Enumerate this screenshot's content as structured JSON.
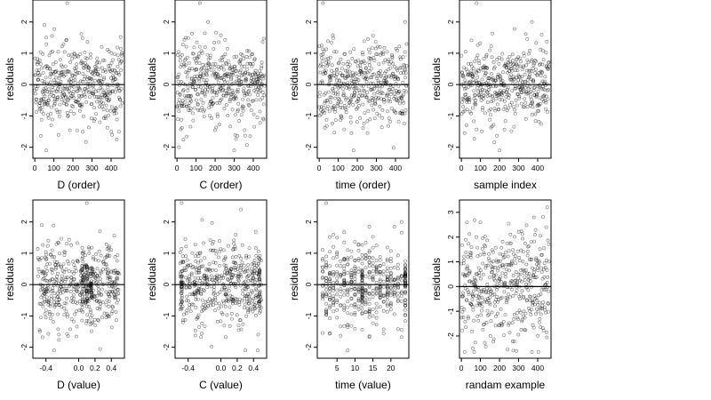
{
  "chart_data": [
    {
      "type": "scatter",
      "xlabel": "D (order)",
      "ylabel": "residuals",
      "xlim": [
        -10,
        470
      ],
      "ylim": [
        -2.35,
        2.7
      ],
      "xticks": [
        0,
        100,
        200,
        300,
        400
      ],
      "xtick_labels": [
        "0",
        "100",
        "200",
        "300",
        "400"
      ],
      "yticks": [
        -2,
        -1,
        0,
        1,
        2
      ],
      "ytick_labels": [
        "-2",
        "-1",
        "0",
        "1",
        "2"
      ],
      "hline": 0,
      "seed": 11,
      "n": 460,
      "xmode": "order",
      "outliers": [
        [
          60,
          -2.1
        ],
        [
          170,
          2.6
        ],
        [
          50,
          1.9
        ]
      ]
    },
    {
      "type": "scatter",
      "xlabel": "C (order)",
      "ylabel": "residuals",
      "xlim": [
        -10,
        470
      ],
      "ylim": [
        -2.35,
        2.7
      ],
      "xticks": [
        0,
        100,
        200,
        300,
        400
      ],
      "xtick_labels": [
        "0",
        "100",
        "200",
        "300",
        "400"
      ],
      "yticks": [
        -2,
        -1,
        0,
        1,
        2
      ],
      "ytick_labels": [
        "-2",
        "-1",
        "0",
        "1",
        "2"
      ],
      "hline": 0,
      "seed": 23,
      "n": 460,
      "xmode": "order",
      "outliers": [
        [
          120,
          2.6
        ],
        [
          300,
          -2.1
        ],
        [
          10,
          -2.0
        ]
      ]
    },
    {
      "type": "scatter",
      "xlabel": "time (order)",
      "ylabel": "residuals",
      "xlim": [
        -10,
        470
      ],
      "ylim": [
        -2.35,
        2.7
      ],
      "xticks": [
        0,
        100,
        200,
        300,
        400
      ],
      "xtick_labels": [
        "0",
        "100",
        "200",
        "300",
        "400"
      ],
      "yticks": [
        -2,
        -1,
        0,
        1,
        2
      ],
      "ytick_labels": [
        "-2",
        "-1",
        "0",
        "1",
        "2"
      ],
      "hline": 0,
      "seed": 37,
      "n": 460,
      "xmode": "order",
      "outliers": [
        [
          20,
          2.6
        ],
        [
          450,
          2.0
        ],
        [
          180,
          -2.1
        ]
      ]
    },
    {
      "type": "scatter",
      "xlabel": "sample index",
      "ylabel": "residuals",
      "xlim": [
        -10,
        470
      ],
      "ylim": [
        -2.35,
        2.7
      ],
      "xticks": [
        0,
        100,
        200,
        300,
        400
      ],
      "xtick_labels": [
        "0",
        "100",
        "200",
        "300",
        "400"
      ],
      "yticks": [
        -2,
        -1,
        0,
        1,
        2
      ],
      "ytick_labels": [
        "-2",
        "-1",
        "0",
        "1",
        "2"
      ],
      "hline": 0,
      "seed": 53,
      "n": 460,
      "xmode": "order",
      "outliers": [
        [
          80,
          2.6
        ],
        [
          370,
          2.0
        ],
        [
          200,
          -2.1
        ]
      ]
    },
    {
      "type": "scatter",
      "xlabel": "D (value)",
      "ylabel": "residuals",
      "xlim": [
        -0.56,
        0.56
      ],
      "ylim": [
        -2.35,
        2.7
      ],
      "xticks": [
        -0.4,
        0,
        0.2,
        0.4
      ],
      "xtick_labels": [
        "-0.4",
        "0.0",
        "0.2",
        "0.4"
      ],
      "yticks": [
        -2,
        -1,
        0,
        1,
        2
      ],
      "ytick_labels": [
        "-2",
        "-1",
        "0",
        "1",
        "2"
      ],
      "hline": 0,
      "seed": 71,
      "n": 460,
      "xmode": "continuous",
      "xrange": [
        -0.5,
        0.5
      ],
      "columns": [
        0.05,
        0.1,
        0.15
      ],
      "outliers": [
        [
          0.1,
          2.6
        ],
        [
          -0.3,
          -2.1
        ],
        [
          -0.45,
          1.9
        ]
      ]
    },
    {
      "type": "scatter",
      "xlabel": "C (value)",
      "ylabel": "residuals",
      "xlim": [
        -0.56,
        0.56
      ],
      "ylim": [
        -2.35,
        2.7
      ],
      "xticks": [
        -0.4,
        0,
        0.2,
        0.4
      ],
      "xtick_labels": [
        "-0.4",
        "0.0",
        "0.2",
        "0.4"
      ],
      "yticks": [
        -2,
        -1,
        0,
        1,
        2
      ],
      "ytick_labels": [
        "-2",
        "-1",
        "0",
        "1",
        "2"
      ],
      "hline": 0,
      "seed": 89,
      "n": 460,
      "xmode": "continuous",
      "xrange": [
        -0.5,
        0.5
      ],
      "columns": [
        -0.48,
        0.47
      ],
      "outliers": [
        [
          -0.48,
          2.6
        ],
        [
          0.45,
          -2.1
        ],
        [
          0.3,
          -2.1
        ]
      ]
    },
    {
      "type": "scatter",
      "xlabel": "time (value)",
      "ylabel": "residuals",
      "xlim": [
        -0.5,
        25
      ],
      "ylim": [
        -2.35,
        2.7
      ],
      "xticks": [
        5,
        10,
        15,
        20
      ],
      "xtick_labels": [
        "5",
        "10",
        "15",
        "20"
      ],
      "yticks": [
        -2,
        -1,
        0,
        1,
        2
      ],
      "ytick_labels": [
        "-2",
        "-1",
        "0",
        "1",
        "2"
      ],
      "hline": 0,
      "seed": 101,
      "n": 460,
      "xmode": "discrete",
      "xrange": [
        1,
        24
      ],
      "columns": [
        12,
        24
      ],
      "outliers": [
        [
          2,
          2.6
        ],
        [
          23,
          2.0
        ],
        [
          8,
          -2.1
        ]
      ]
    },
    {
      "type": "scatter",
      "xlabel": "randam example",
      "ylabel": "residuals",
      "xlim": [
        -10,
        470
      ],
      "ylim": [
        -2.9,
        3.5
      ],
      "xticks": [
        0,
        100,
        200,
        300,
        400
      ],
      "xtick_labels": [
        "0",
        "100",
        "200",
        "300",
        "400"
      ],
      "yticks": [
        -2,
        -1,
        0,
        1,
        2,
        3
      ],
      "ytick_labels": [
        "-2",
        "-1",
        "0",
        "1",
        "2",
        "3"
      ],
      "hline": 0,
      "seed": 131,
      "n": 460,
      "xmode": "order",
      "spread": 1.1,
      "outliers": [
        [
          450,
          3.2
        ],
        [
          60,
          -2.5
        ],
        [
          380,
          2.8
        ]
      ]
    }
  ]
}
